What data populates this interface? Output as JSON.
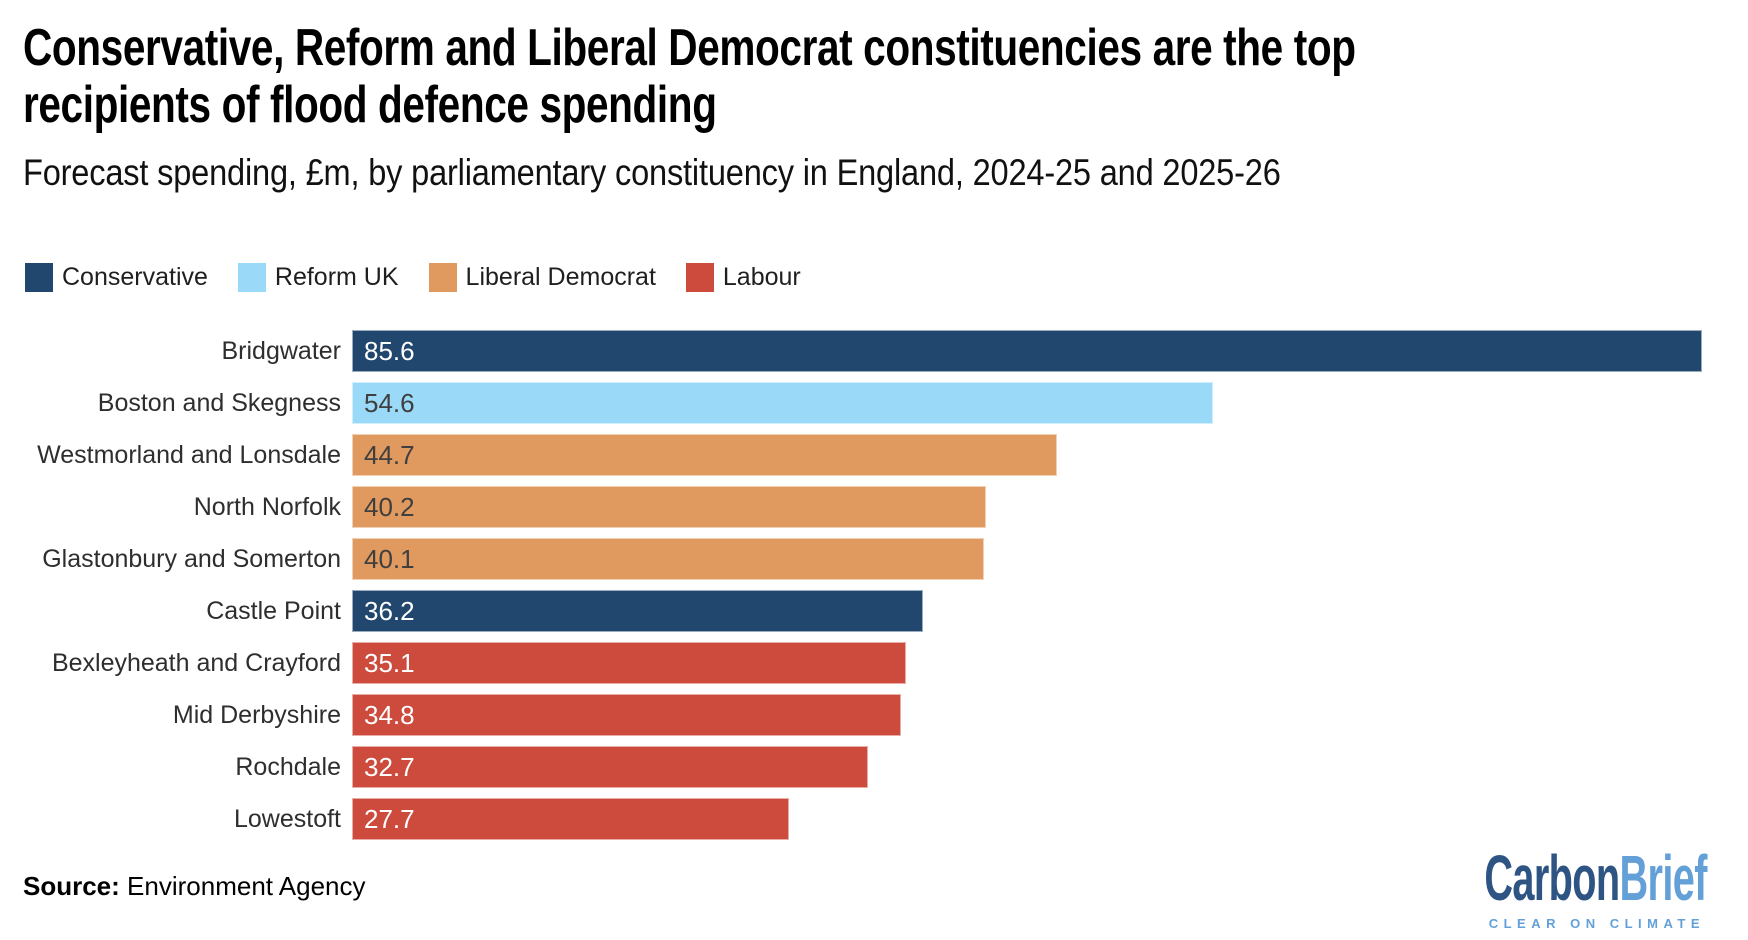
{
  "header": {
    "title_lines": [
      "Conservative, Reform and Liberal Democrat constituencies are the top",
      "recipients of flood defence spending"
    ],
    "subtitle": "Forecast spending, £m, by parliamentary constituency in England, 2024-25 and 2025-26"
  },
  "legend": [
    {
      "label": "Conservative",
      "color": "#21476e"
    },
    {
      "label": "Reform UK",
      "color": "#9ad9f8"
    },
    {
      "label": "Liberal Democrat",
      "color": "#e0995e"
    },
    {
      "label": "Labour",
      "color": "#cc4b3c"
    }
  ],
  "chart_data": {
    "type": "bar",
    "orientation": "horizontal",
    "title": "Conservative, Reform and Liberal Democrat constituencies are the top recipients of flood defence spending",
    "subtitle": "Forecast spending, £m, by parliamentary constituency in England, 2024-25 and 2025-26",
    "unit": "£m",
    "xlim": [
      0,
      85.6
    ],
    "grid": false,
    "legend_position": "top",
    "value_labels": "inside-left",
    "categories": [
      "Bridgwater",
      "Boston and Skegness",
      "Westmorland and Lonsdale",
      "North Norfolk",
      "Glastonbury and Somerton",
      "Castle Point",
      "Bexleyheath and Crayford",
      "Mid Derbyshire",
      "Rochdale",
      "Lowestoft"
    ],
    "values": [
      85.6,
      54.6,
      44.7,
      40.2,
      40.1,
      36.2,
      35.1,
      34.8,
      32.7,
      27.7
    ],
    "parties": [
      "Conservative",
      "Reform UK",
      "Liberal Democrat",
      "Liberal Democrat",
      "Liberal Democrat",
      "Conservative",
      "Labour",
      "Labour",
      "Labour",
      "Labour"
    ],
    "party_colors": {
      "Conservative": {
        "fill": "#21476e",
        "value_text": "#ffffff"
      },
      "Reform UK": {
        "fill": "#9ad9f8",
        "value_text": "#3f3f3f"
      },
      "Liberal Democrat": {
        "fill": "#e0995e",
        "value_text": "#3f3f3f"
      },
      "Labour": {
        "fill": "#cc4b3c",
        "value_text": "#ffffff"
      }
    }
  },
  "footer": {
    "source_label": "Source:",
    "source_value": "Environment Agency",
    "logo": {
      "part1": "Carbon",
      "part2": "Brief",
      "tagline": "CLEAR ON CLIMATE",
      "color1": "#2d5483",
      "color2": "#63a0d8"
    }
  }
}
